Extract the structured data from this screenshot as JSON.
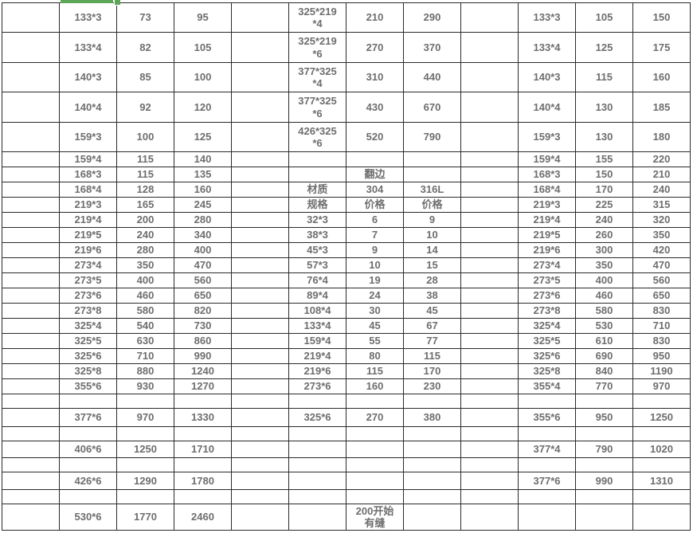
{
  "selection": {
    "color": "#5ba757",
    "note": "bottom edge of selected cell with fill handle"
  },
  "table": {
    "column_groups": [
      {
        "spec_col": 1,
        "price1_col": 2,
        "price2_col": 3
      },
      {
        "spec_col": 5,
        "price1_col": 6,
        "price2_col": 7
      },
      {
        "spec_col": 9,
        "price1_col": 10,
        "price2_col": 11
      }
    ],
    "header_labels": {
      "flange": "翻边",
      "material": "材质",
      "spec": "规格",
      "grade_a": "304",
      "grade_b": "316L",
      "price": "价格"
    },
    "rows": [
      [
        "",
        "133*3",
        "73",
        "95",
        "",
        "325*219\n*4",
        "210",
        "290",
        "",
        "133*3",
        "105",
        "150"
      ],
      [
        "",
        "133*4",
        "82",
        "105",
        "",
        "325*219\n*6",
        "270",
        "370",
        "",
        "133*4",
        "125",
        "175"
      ],
      [
        "",
        "140*3",
        "85",
        "100",
        "",
        "377*325\n*4",
        "310",
        "440",
        "",
        "140*3",
        "115",
        "160"
      ],
      [
        "",
        "140*4",
        "92",
        "120",
        "",
        "377*325\n*6",
        "430",
        "670",
        "",
        "140*4",
        "130",
        "185"
      ],
      [
        "",
        "159*3",
        "100",
        "125",
        "",
        "426*325\n*6",
        "520",
        "790",
        "",
        "159*3",
        "130",
        "180"
      ],
      [
        "",
        "159*4",
        "115",
        "140",
        "",
        "",
        "",
        "",
        "",
        "159*4",
        "155",
        "220"
      ],
      [
        "",
        "168*3",
        "115",
        "135",
        "",
        "",
        "翻边",
        "",
        "",
        "168*3",
        "150",
        "210"
      ],
      [
        "",
        "168*4",
        "128",
        "160",
        "",
        "材质",
        "304",
        "316L",
        "",
        "168*4",
        "170",
        "240"
      ],
      [
        "",
        "219*3",
        "165",
        "245",
        "",
        "规格",
        "价格",
        "价格",
        "",
        "219*3",
        "225",
        "315"
      ],
      [
        "",
        "219*4",
        "200",
        "280",
        "",
        "32*3",
        "6",
        "9",
        "",
        "219*4",
        "240",
        "320"
      ],
      [
        "",
        "219*5",
        "240",
        "340",
        "",
        "38*3",
        "7",
        "10",
        "",
        "219*5",
        "260",
        "350"
      ],
      [
        "",
        "219*6",
        "280",
        "400",
        "",
        "45*3",
        "9",
        "14",
        "",
        "219*6",
        "300",
        "420"
      ],
      [
        "",
        "273*4",
        "350",
        "470",
        "",
        "57*3",
        "10",
        "15",
        "",
        "273*4",
        "350",
        "470"
      ],
      [
        "",
        "273*5",
        "400",
        "560",
        "",
        "76*4",
        "19",
        "28",
        "",
        "273*5",
        "400",
        "560"
      ],
      [
        "",
        "273*6",
        "460",
        "650",
        "",
        "89*4",
        "24",
        "38",
        "",
        "273*6",
        "460",
        "650"
      ],
      [
        "",
        "273*8",
        "580",
        "820",
        "",
        "108*4",
        "30",
        "45",
        "",
        "273*8",
        "580",
        "830"
      ],
      [
        "",
        "325*4",
        "540",
        "730",
        "",
        "133*4",
        "45",
        "67",
        "",
        "325*4",
        "530",
        "710"
      ],
      [
        "",
        "325*5",
        "630",
        "860",
        "",
        "159*4",
        "55",
        "77",
        "",
        "325*5",
        "610",
        "830"
      ],
      [
        "",
        "325*6",
        "710",
        "990",
        "",
        "219*4",
        "80",
        "115",
        "",
        "325*6",
        "690",
        "950"
      ],
      [
        "",
        "325*8",
        "880",
        "1240",
        "",
        "219*6",
        "115",
        "170",
        "",
        "325*8",
        "840",
        "1190"
      ],
      [
        "",
        "355*6",
        "930",
        "1270",
        "",
        "273*6",
        "160",
        "230",
        "",
        "355*4",
        "770",
        "970"
      ],
      [
        "",
        "",
        "",
        "",
        "",
        "",
        "",
        "",
        "",
        "",
        "",
        ""
      ],
      [
        "",
        "377*6",
        "970",
        "1330",
        "",
        "325*6",
        "270",
        "380",
        "",
        "355*6",
        "950",
        "1250"
      ],
      [
        "",
        "",
        "",
        "",
        "",
        "",
        "",
        "",
        "",
        "",
        "",
        ""
      ],
      [
        "",
        "406*6",
        "1250",
        "1710",
        "",
        "",
        "",
        "",
        "",
        "377*4",
        "790",
        "1020"
      ],
      [
        "",
        "",
        "",
        "",
        "",
        "",
        "",
        "",
        "",
        "",
        "",
        ""
      ],
      [
        "",
        "426*6",
        "1290",
        "1780",
        "",
        "",
        "",
        "",
        "",
        "377*6",
        "990",
        "1310"
      ],
      [
        "",
        "",
        "",
        "",
        "",
        "",
        "",
        "",
        "",
        "",
        "",
        ""
      ],
      [
        "",
        "530*6",
        "1770",
        "2460",
        "",
        "",
        "200开始\n有缝",
        "",
        "",
        "",
        "",
        ""
      ]
    ]
  }
}
